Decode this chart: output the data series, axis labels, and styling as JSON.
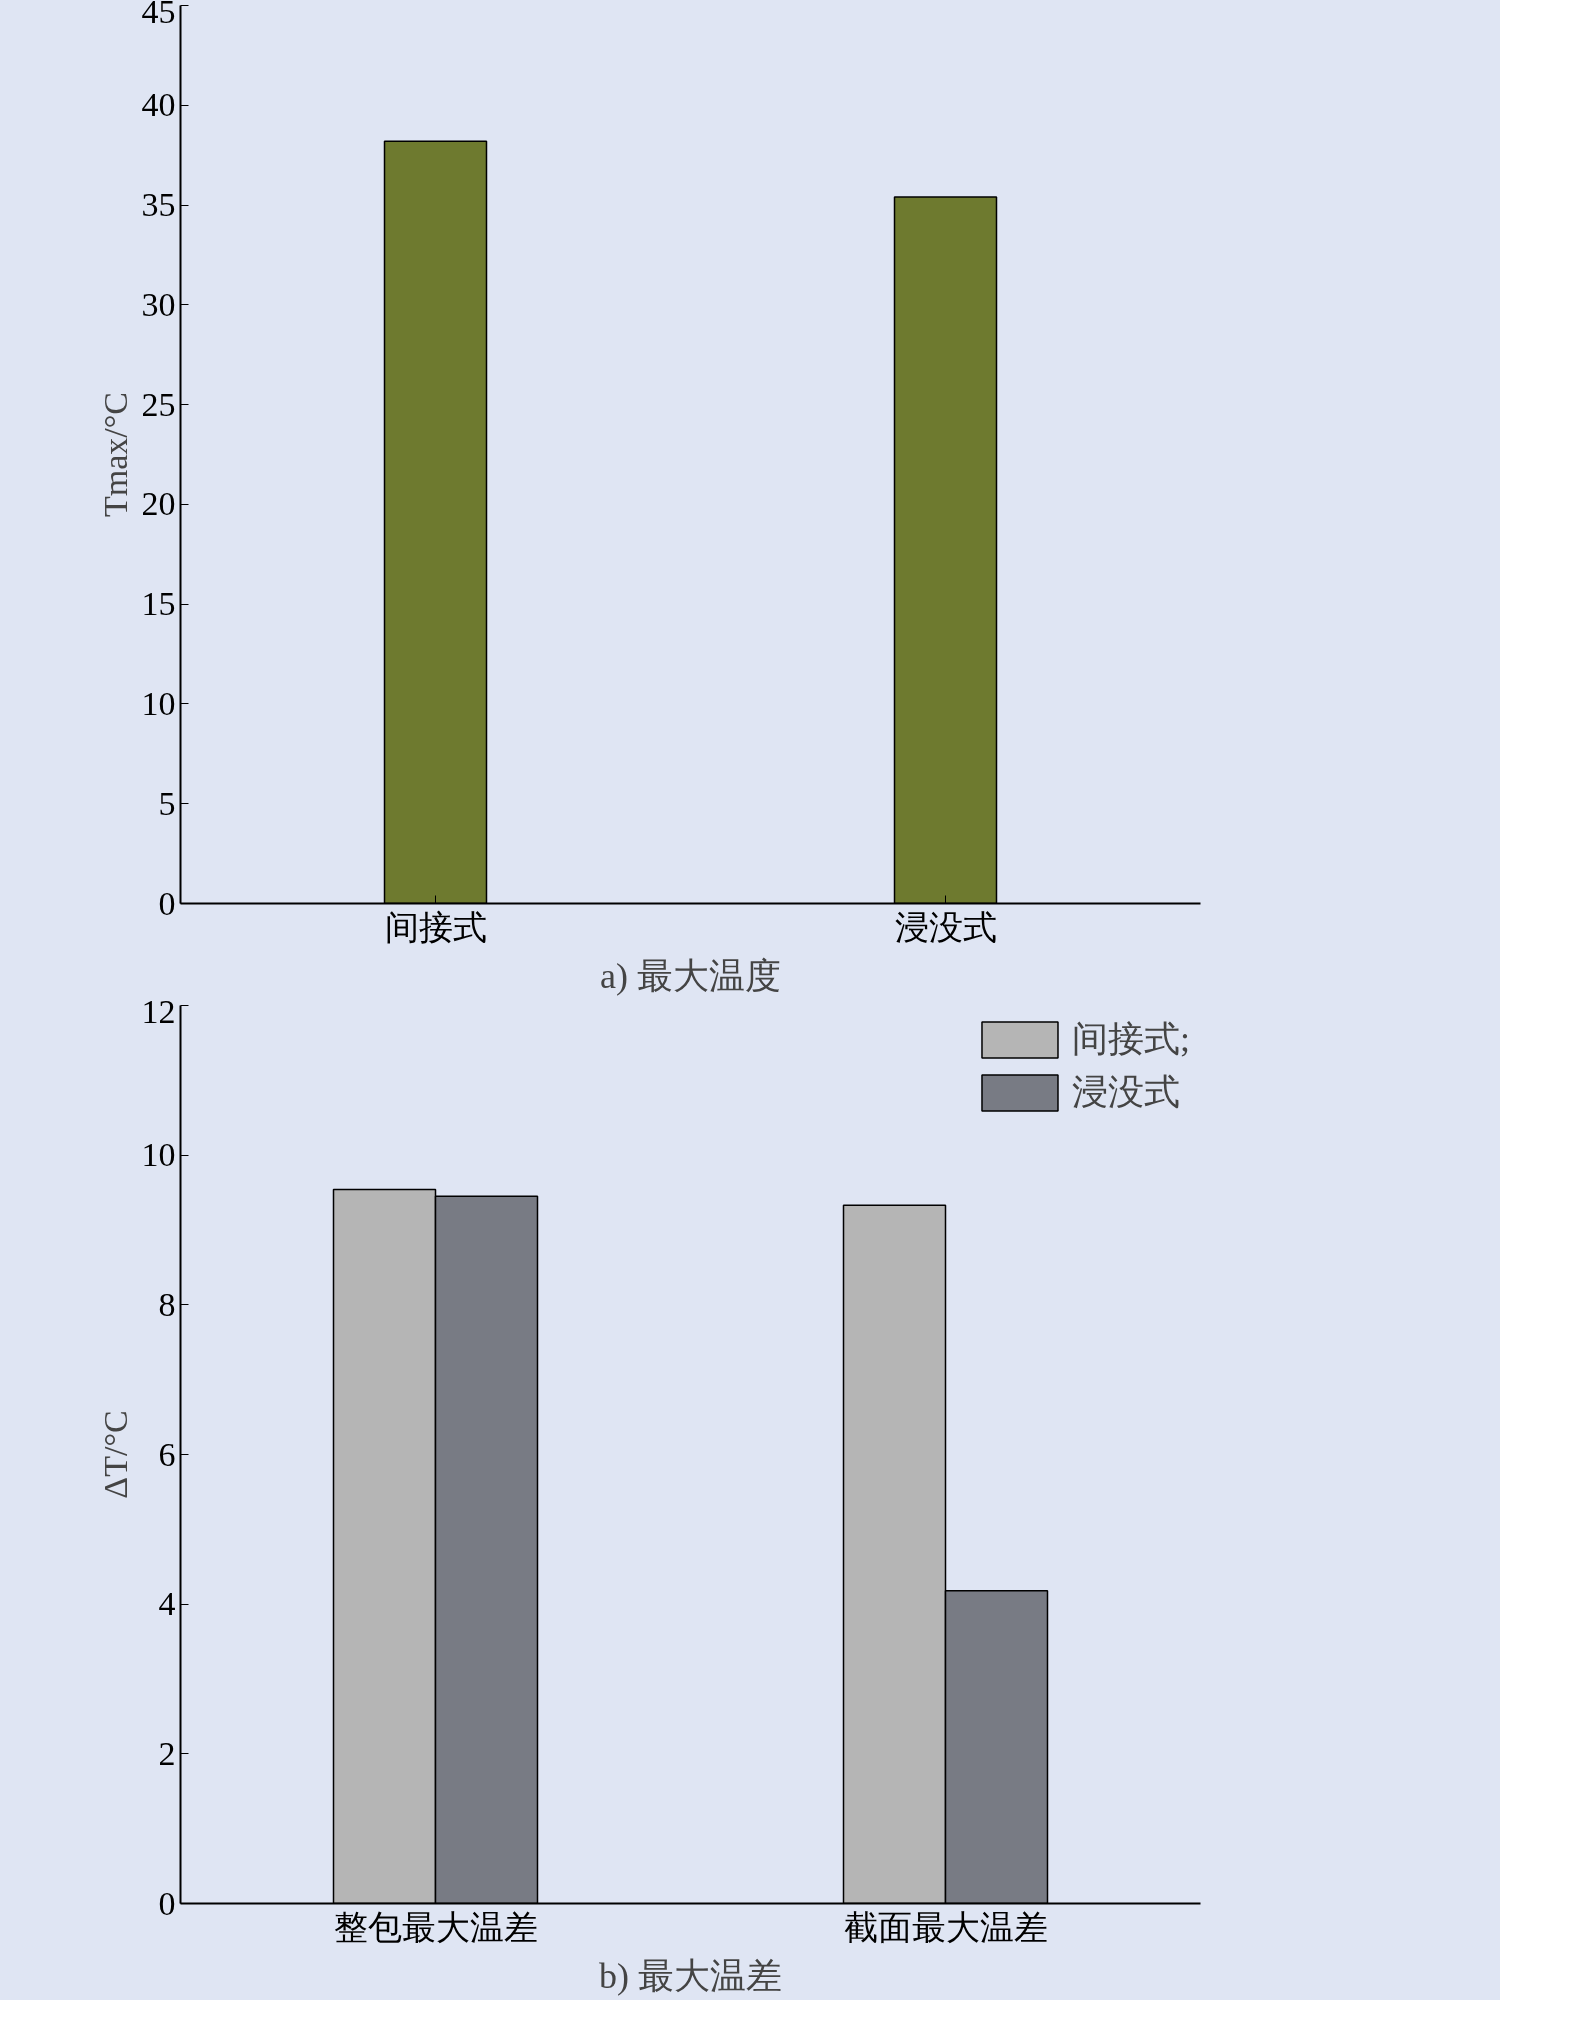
{
  "chart_data": [
    {
      "type": "bar",
      "title": "a) 最大温度",
      "ylabel": "Tmax/°C",
      "categories": [
        "间接式",
        "浸没式"
      ],
      "values": [
        38.2,
        35.4
      ],
      "color": "#6e7a2f",
      "ylim": [
        0,
        45
      ],
      "yticks": [
        0,
        5,
        10,
        15,
        20,
        25,
        30,
        35,
        40,
        45
      ]
    },
    {
      "type": "bar",
      "title": "b) 最大温差",
      "ylabel": "ΔT/°C",
      "categories": [
        "整包最大温差",
        "截面最大温差"
      ],
      "series": [
        {
          "name": "间接式;",
          "color": "#b5b5b5",
          "values": [
            9.54,
            9.33
          ]
        },
        {
          "name": "浸没式",
          "color": "#787b84",
          "values": [
            9.45,
            4.18
          ]
        }
      ],
      "ylim": [
        0,
        12
      ],
      "yticks": [
        0,
        2,
        4,
        6,
        8,
        10,
        12
      ],
      "legend": "top right"
    }
  ]
}
